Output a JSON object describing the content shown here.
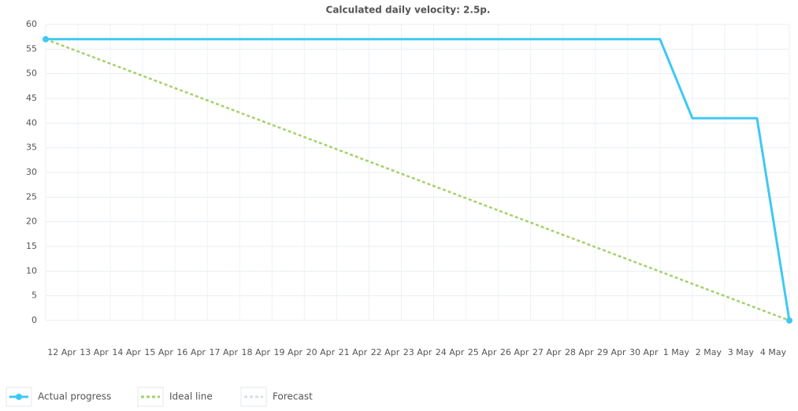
{
  "chart_data": {
    "type": "line",
    "title": "Calculated daily velocity: 2.5p.",
    "categories": [
      "12 Apr",
      "13 Apr",
      "14 Apr",
      "15 Apr",
      "16 Apr",
      "17 Apr",
      "18 Apr",
      "19 Apr",
      "20 Apr",
      "21 Apr",
      "22 Apr",
      "23 Apr",
      "24 Apr",
      "25 Apr",
      "26 Apr",
      "27 Apr",
      "28 Apr",
      "29 Apr",
      "30 Apr",
      "1 May",
      "2 May",
      "3 May",
      "4 May",
      null
    ],
    "series": [
      {
        "name": "Actual progress",
        "color": "#3fc8f4",
        "dash": false,
        "values": [
          57,
          57,
          57,
          57,
          57,
          57,
          57,
          57,
          57,
          57,
          57,
          57,
          57,
          57,
          57,
          57,
          57,
          57,
          57,
          57,
          41,
          41,
          41,
          0
        ]
      },
      {
        "name": "Ideal line",
        "color": "#a5d16b",
        "dash": true,
        "values": [
          57,
          54.52,
          52.04,
          49.57,
          47.09,
          44.61,
          42.13,
          39.65,
          37.17,
          34.7,
          32.22,
          29.74,
          27.26,
          24.78,
          22.3,
          19.83,
          17.35,
          14.87,
          12.39,
          9.91,
          7.43,
          4.96,
          2.48,
          0
        ]
      },
      {
        "name": "Forecast",
        "color": "#d6dde6",
        "dash": true,
        "values": [
          null,
          null,
          null,
          null,
          null,
          null,
          null,
          null,
          null,
          null,
          null,
          null,
          null,
          null,
          null,
          null,
          null,
          null,
          null,
          null,
          null,
          null,
          null,
          null
        ]
      }
    ],
    "ylim": [
      0,
      60
    ],
    "yticks": [
      0,
      5,
      10,
      15,
      20,
      25,
      30,
      35,
      40,
      45,
      50,
      55,
      60
    ],
    "grid": true,
    "legend": "bottom"
  }
}
